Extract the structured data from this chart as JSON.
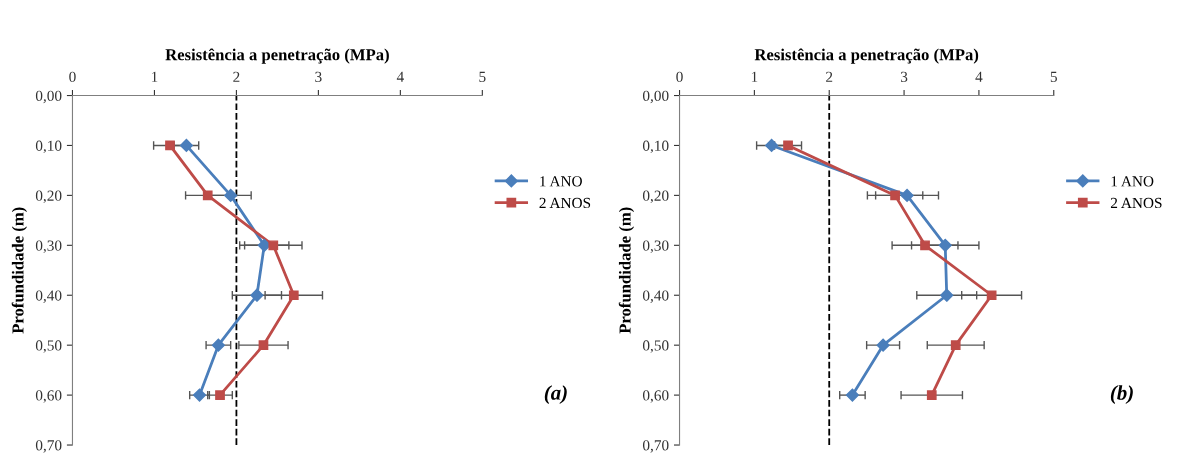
{
  "chart_data": [
    {
      "type": "line",
      "orientation": "horizontal",
      "xlabel": "Resistência a penetração (MPa)",
      "ylabel": "Profundidade (m)",
      "annotations": [
        "(a)"
      ],
      "x": [
        0.1,
        0.2,
        0.3,
        0.4,
        0.5,
        0.6
      ],
      "series": [
        {
          "name": "1 ANO",
          "color": "#4a7ebb",
          "marker": "diamond",
          "values": [
            1.39,
            1.93,
            2.34,
            2.25,
            1.78,
            1.55
          ],
          "errors": [
            0.15,
            0.25,
            0.3,
            0.3,
            0.15,
            0.12
          ]
        },
        {
          "name": "2 ANOS",
          "color": "#be4b48",
          "marker": "square",
          "values": [
            1.19,
            1.65,
            2.45,
            2.7,
            2.33,
            1.8
          ],
          "errors": [
            0.2,
            0.27,
            0.35,
            0.35,
            0.3,
            0.15
          ]
        }
      ],
      "xlim": [
        0,
        5
      ],
      "xticks": [
        0,
        1,
        2,
        3,
        4,
        5
      ],
      "ylim": [
        0.7,
        0
      ],
      "yticks": [
        {
          "value": 0,
          "label": "0,00"
        },
        {
          "value": 0.1,
          "label": "0,10"
        },
        {
          "value": 0.2,
          "label": "0,20"
        },
        {
          "value": 0.3,
          "label": "0,30"
        },
        {
          "value": 0.4,
          "label": "0,40"
        },
        {
          "value": 0.5,
          "label": "0,50"
        },
        {
          "value": 0.6,
          "label": "0,60"
        },
        {
          "value": 0.7,
          "label": "0,70"
        }
      ],
      "ref_lines": [
        {
          "axis": "x",
          "value": 2,
          "color": "#000000",
          "line_style": "dashed"
        }
      ],
      "legend": "right",
      "grid": false
    },
    {
      "type": "line",
      "orientation": "horizontal",
      "xlabel": "Resistência a penetração (MPa)",
      "ylabel": "Profundidade (m)",
      "annotations": [
        "(b)"
      ],
      "x": [
        0.1,
        0.2,
        0.3,
        0.4,
        0.5,
        0.6
      ],
      "series": [
        {
          "name": "1 ANO",
          "color": "#4a7ebb",
          "marker": "diamond",
          "values": [
            1.23,
            3.04,
            3.55,
            3.57,
            2.72,
            2.31
          ],
          "errors": [
            0.2,
            0.42,
            0.45,
            0.4,
            0.22,
            0.17
          ]
        },
        {
          "name": "2 ANOS",
          "color": "#be4b48",
          "marker": "square",
          "values": [
            1.45,
            2.88,
            3.28,
            4.17,
            3.69,
            3.37
          ],
          "errors": [
            0.18,
            0.37,
            0.44,
            0.4,
            0.38,
            0.41
          ]
        }
      ],
      "xlim": [
        0,
        5
      ],
      "xticks": [
        0,
        1,
        2,
        3,
        4,
        5
      ],
      "ylim": [
        0.7,
        0
      ],
      "yticks": [
        {
          "value": 0,
          "label": "0,00"
        },
        {
          "value": 0.1,
          "label": "0,10"
        },
        {
          "value": 0.2,
          "label": "0,20"
        },
        {
          "value": 0.3,
          "label": "0,30"
        },
        {
          "value": 0.4,
          "label": "0,40"
        },
        {
          "value": 0.5,
          "label": "0,50"
        },
        {
          "value": 0.6,
          "label": "0,60"
        },
        {
          "value": 0.7,
          "label": "0,70"
        }
      ],
      "ref_lines": [
        {
          "axis": "x",
          "value": 2,
          "color": "#000000",
          "line_style": "dashed"
        }
      ],
      "legend": "right",
      "grid": false
    }
  ]
}
